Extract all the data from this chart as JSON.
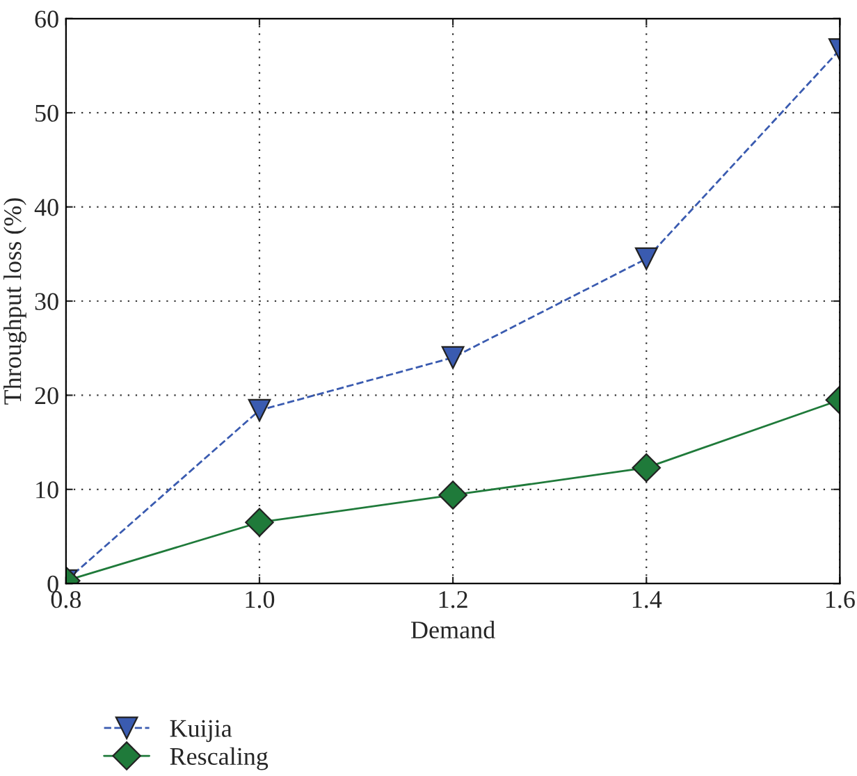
{
  "chart_data": {
    "type": "line",
    "xlabel": "Demand",
    "ylabel": "Throughput loss (%)",
    "x": [
      0.8,
      1.0,
      1.2,
      1.4,
      1.6
    ],
    "series": [
      {
        "name": "Kuijia",
        "color": "#3a5bb0",
        "values": [
          0.3,
          18.4,
          24.0,
          34.5,
          56.7
        ],
        "marker": "triangle_down",
        "line_style": "dashed"
      },
      {
        "name": "Rescaling",
        "color": "#1f7a3a",
        "values": [
          0.3,
          6.5,
          9.4,
          12.3,
          19.5
        ],
        "marker": "diamond",
        "line_style": "solid"
      }
    ],
    "xlim": [
      0.8,
      1.6
    ],
    "ylim": [
      0,
      60
    ],
    "xticks": [
      {
        "value": 0.8,
        "label": "0.8"
      },
      {
        "value": 1.0,
        "label": "1.0"
      },
      {
        "value": 1.2,
        "label": "1.2"
      },
      {
        "value": 1.4,
        "label": "1.4"
      },
      {
        "value": 1.6,
        "label": "1.6"
      }
    ],
    "yticks": [
      0,
      10,
      20,
      30,
      40,
      50,
      60
    ],
    "grid": true,
    "legend": "bottom left"
  }
}
